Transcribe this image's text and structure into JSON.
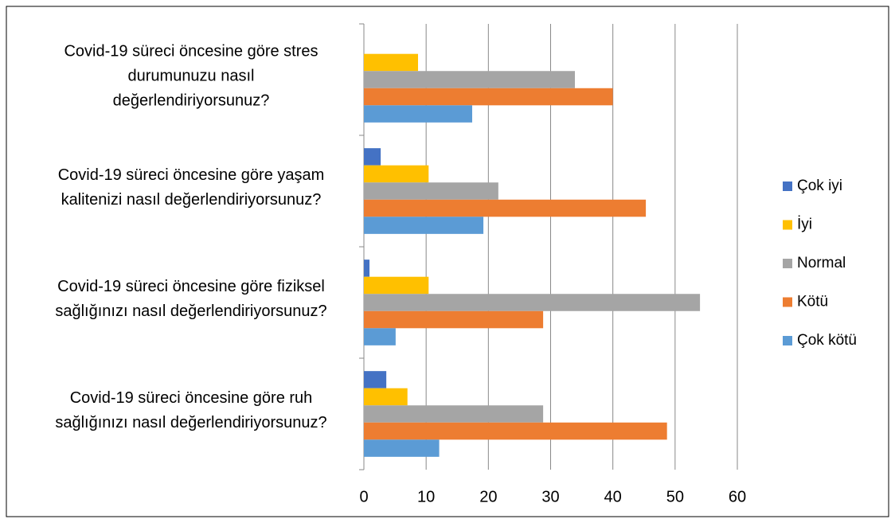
{
  "chart_data": {
    "type": "barh",
    "categories": [
      [
        "Covid-19 süreci öncesine göre stres",
        "durumunuzu nasıl",
        "değerlendiriyorsunuz?"
      ],
      [
        "Covid-19 süreci öncesine göre yaşam",
        "kalitenizi nasıl değerlendiriyorsunuz?"
      ],
      [
        "Covid-19 süreci öncesine göre fiziksel",
        "sağlığınızı nasıl değerlendiriyorsunuz?"
      ],
      [
        "Covid-19 süreci öncesine göre ruh",
        "sağlığınızı nasıl değerlendiriyorsunuz?"
      ]
    ],
    "series": [
      {
        "name": "Çok iyi",
        "color": "#4472c4",
        "values": [
          0,
          2.7,
          0.9,
          3.6
        ]
      },
      {
        "name": "İyi",
        "color": "#ffc000",
        "values": [
          8.7,
          10.4,
          10.4,
          7.0
        ]
      },
      {
        "name": "Normal",
        "color": "#a5a5a5",
        "values": [
          33.9,
          21.6,
          54.0,
          28.8
        ]
      },
      {
        "name": "Kötü",
        "color": "#ed7d31",
        "values": [
          40.0,
          45.3,
          28.8,
          48.7
        ]
      },
      {
        "name": "Çok kötü",
        "color": "#5b9bd5",
        "values": [
          17.4,
          19.2,
          5.1,
          12.1
        ]
      }
    ],
    "xlim": [
      0,
      60
    ],
    "xticks": [
      0,
      10,
      20,
      30,
      40,
      50,
      60
    ],
    "grid": true,
    "legend": "right"
  }
}
